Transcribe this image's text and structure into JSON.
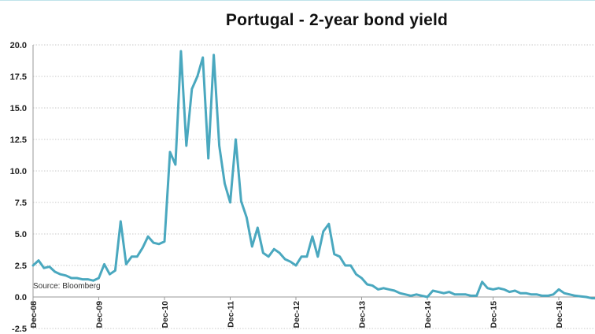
{
  "chart_data": {
    "type": "line",
    "title": "Portugal - 2-year bond yield",
    "source": "Source: Bloomberg",
    "xlabel": "",
    "ylabel": "",
    "ylim": [
      -2.5,
      20.0
    ],
    "yticks": [
      "-2.5",
      "0.0",
      "2.5",
      "5.0",
      "7.5",
      "10.0",
      "12.5",
      "15.0",
      "17.5",
      "20.0"
    ],
    "ytick_values": [
      -2.5,
      0.0,
      2.5,
      5.0,
      7.5,
      10.0,
      12.5,
      15.0,
      17.5,
      20.0
    ],
    "xticks": [
      "Dec-08",
      "Dec-09",
      "Dec-10",
      "Dec-11",
      "Dec-12",
      "Dec-13",
      "Dec-14",
      "Dec-15",
      "Dec-16"
    ],
    "xlim": [
      "2008-12",
      "2017-07"
    ],
    "grid": true,
    "series_color": "#4aa8bf",
    "series": [
      {
        "x": [
          "2008-12",
          "2009-01",
          "2009-02",
          "2009-03",
          "2009-04",
          "2009-05",
          "2009-06",
          "2009-07",
          "2009-08",
          "2009-09",
          "2009-10",
          "2009-11",
          "2009-12",
          "2010-01",
          "2010-02",
          "2010-03",
          "2010-04",
          "2010-05",
          "2010-06",
          "2010-07",
          "2010-08",
          "2010-09",
          "2010-10",
          "2010-11",
          "2010-12",
          "2011-01",
          "2011-02",
          "2011-03",
          "2011-04",
          "2011-05",
          "2011-06",
          "2011-07",
          "2011-08",
          "2011-09",
          "2011-10",
          "2011-11",
          "2011-12",
          "2012-01",
          "2012-02",
          "2012-03",
          "2012-04",
          "2012-05",
          "2012-06",
          "2012-07",
          "2012-08",
          "2012-09",
          "2012-10",
          "2012-11",
          "2012-12",
          "2013-01",
          "2013-02",
          "2013-03",
          "2013-04",
          "2013-05",
          "2013-06",
          "2013-07",
          "2013-08",
          "2013-09",
          "2013-10",
          "2013-11",
          "2013-12",
          "2014-01",
          "2014-02",
          "2014-03",
          "2014-04",
          "2014-05",
          "2014-06",
          "2014-07",
          "2014-08",
          "2014-09",
          "2014-10",
          "2014-11",
          "2014-12",
          "2015-01",
          "2015-02",
          "2015-03",
          "2015-04",
          "2015-05",
          "2015-06",
          "2015-07",
          "2015-08",
          "2015-09",
          "2015-10",
          "2015-11",
          "2015-12",
          "2016-01",
          "2016-02",
          "2016-03",
          "2016-04",
          "2016-05",
          "2016-06",
          "2016-07",
          "2016-08",
          "2016-09",
          "2016-10",
          "2016-11",
          "2016-12",
          "2017-01",
          "2017-02",
          "2017-03",
          "2017-04",
          "2017-05",
          "2017-06",
          "2017-07"
        ],
        "values": [
          2.5,
          2.9,
          2.3,
          2.4,
          2.0,
          1.8,
          1.7,
          1.5,
          1.5,
          1.4,
          1.4,
          1.3,
          1.5,
          2.6,
          1.8,
          2.1,
          6.0,
          2.6,
          3.2,
          3.2,
          3.9,
          4.8,
          4.3,
          4.2,
          4.4,
          11.5,
          10.5,
          19.5,
          12.0,
          16.5,
          17.5,
          19.0,
          11.0,
          19.2,
          12.0,
          9.0,
          7.5,
          12.5,
          7.6,
          6.3,
          4.0,
          5.5,
          3.5,
          3.2,
          3.8,
          3.5,
          3.0,
          2.8,
          2.5,
          3.2,
          3.2,
          4.8,
          3.2,
          5.2,
          5.8,
          3.4,
          3.2,
          2.5,
          2.5,
          1.8,
          1.5,
          1.0,
          0.9,
          0.6,
          0.7,
          0.6,
          0.5,
          0.3,
          0.2,
          0.1,
          0.2,
          0.1,
          0.0,
          0.5,
          0.4,
          0.3,
          0.4,
          0.2,
          0.2,
          0.2,
          0.1,
          0.1,
          1.2,
          0.7,
          0.6,
          0.7,
          0.6,
          0.4,
          0.5,
          0.3,
          0.3,
          0.2,
          0.2,
          0.1,
          0.1,
          0.2,
          0.6,
          0.3,
          0.2,
          0.1,
          0.05,
          0.0,
          -0.1,
          -0.1
        ]
      }
    ]
  }
}
